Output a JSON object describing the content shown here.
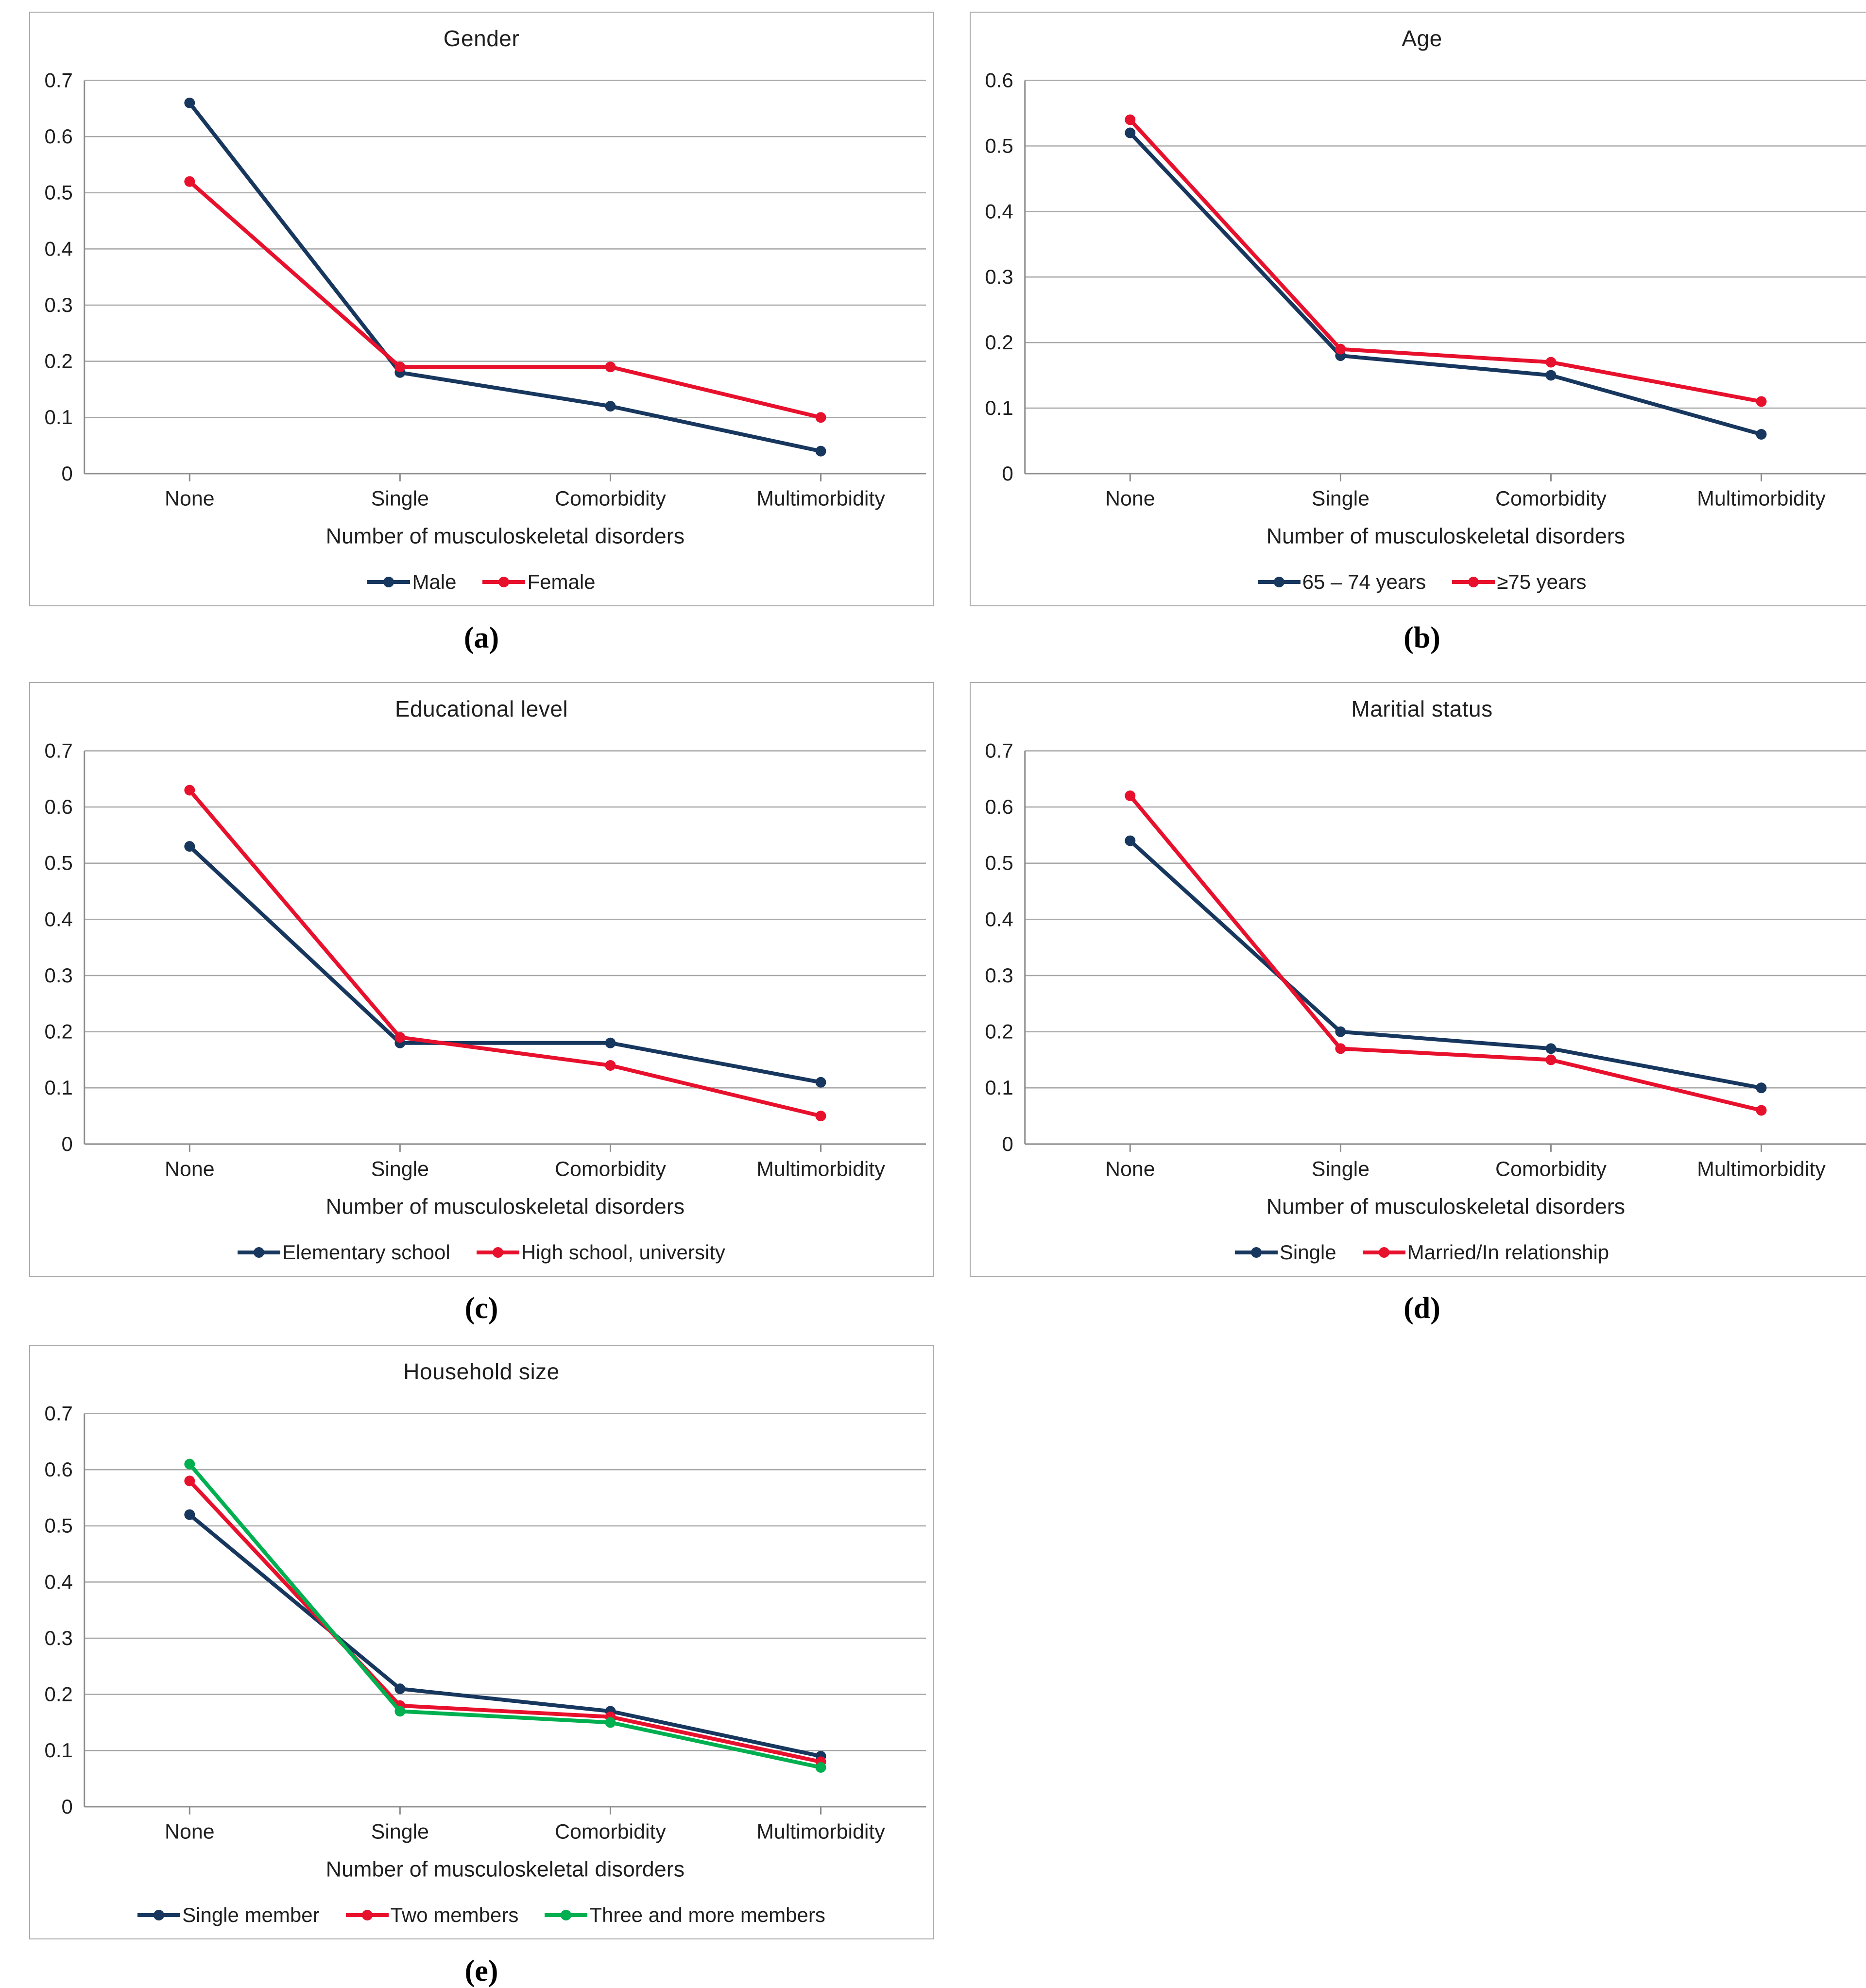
{
  "figure": {
    "xlabel": "Number of musculoskeletal disorders",
    "categories": [
      "None",
      "Single",
      "Comorbidity",
      "Multimorbidity"
    ]
  },
  "colors": {
    "navy": "#17375E",
    "red": "#E8112D",
    "green": "#00AF50",
    "gridline": "#a8a8a8",
    "axis": "#8c8c8c",
    "panel_border": "#a9a9a9",
    "text": "#1f1f1f"
  },
  "chart_data": [
    {
      "type": "line",
      "caption": "(a)",
      "title": "Gender",
      "xlabel": "Number of musculoskeletal disorders",
      "categories": [
        "None",
        "Single",
        "Comorbidity",
        "Multimorbidity"
      ],
      "ylim": [
        0,
        0.7
      ],
      "ytick_labels": [
        "0",
        "0.1",
        "0.2",
        "0.3",
        "0.4",
        "0.5",
        "0.6",
        "0.7"
      ],
      "grid": true,
      "legend_position": "bottom",
      "series": [
        {
          "name": "Male",
          "color_key": "navy",
          "values": [
            0.66,
            0.18,
            0.12,
            0.04
          ]
        },
        {
          "name": "Female",
          "color_key": "red",
          "values": [
            0.52,
            0.19,
            0.19,
            0.1
          ]
        }
      ]
    },
    {
      "type": "line",
      "caption": "(b)",
      "title": "Age",
      "xlabel": "Number of musculoskeletal disorders",
      "categories": [
        "None",
        "Single",
        "Comorbidity",
        "Multimorbidity"
      ],
      "ylim": [
        0,
        0.6
      ],
      "ytick_labels": [
        "0",
        "0.1",
        "0.2",
        "0.3",
        "0.4",
        "0.5",
        "0.6"
      ],
      "grid": true,
      "legend_position": "bottom",
      "series": [
        {
          "name": "65 – 74 years",
          "color_key": "navy",
          "values": [
            0.52,
            0.18,
            0.15,
            0.06
          ]
        },
        {
          "name": "≥75 years",
          "color_key": "red",
          "values": [
            0.54,
            0.19,
            0.17,
            0.11
          ]
        }
      ]
    },
    {
      "type": "line",
      "caption": "(c)",
      "title": "Educational level",
      "xlabel": "Number of musculoskeletal disorders",
      "categories": [
        "None",
        "Single",
        "Comorbidity",
        "Multimorbidity"
      ],
      "ylim": [
        0,
        0.7
      ],
      "ytick_labels": [
        "0",
        "0.1",
        "0.2",
        "0.3",
        "0.4",
        "0.5",
        "0.6",
        "0.7"
      ],
      "grid": true,
      "legend_position": "bottom",
      "series": [
        {
          "name": "Elementary school",
          "color_key": "navy",
          "values": [
            0.53,
            0.18,
            0.18,
            0.11
          ]
        },
        {
          "name": "High school, university",
          "color_key": "red",
          "values": [
            0.63,
            0.19,
            0.14,
            0.05
          ]
        }
      ]
    },
    {
      "type": "line",
      "caption": "(d)",
      "title": "Maritial status",
      "xlabel": "Number of musculoskeletal disorders",
      "categories": [
        "None",
        "Single",
        "Comorbidity",
        "Multimorbidity"
      ],
      "ylim": [
        0,
        0.7
      ],
      "ytick_labels": [
        "0",
        "0.1",
        "0.2",
        "0.3",
        "0.4",
        "0.5",
        "0.6",
        "0.7"
      ],
      "grid": true,
      "legend_position": "bottom",
      "series": [
        {
          "name": "Single",
          "color_key": "navy",
          "values": [
            0.54,
            0.2,
            0.17,
            0.1
          ]
        },
        {
          "name": "Married/In relationship",
          "color_key": "red",
          "values": [
            0.62,
            0.17,
            0.15,
            0.06
          ]
        }
      ]
    },
    {
      "type": "line",
      "caption": "(e)",
      "title": "Household size",
      "xlabel": "Number of musculoskeletal disorders",
      "categories": [
        "None",
        "Single",
        "Comorbidity",
        "Multimorbidity"
      ],
      "ylim": [
        0,
        0.7
      ],
      "ytick_labels": [
        "0",
        "0.1",
        "0.2",
        "0.3",
        "0.4",
        "0.5",
        "0.6",
        "0.7"
      ],
      "grid": true,
      "legend_position": "bottom",
      "series": [
        {
          "name": "Single member",
          "color_key": "navy",
          "values": [
            0.52,
            0.21,
            0.17,
            0.09
          ]
        },
        {
          "name": "Two members",
          "color_key": "red",
          "values": [
            0.58,
            0.18,
            0.16,
            0.08
          ]
        },
        {
          "name": "Three and more members",
          "color_key": "green",
          "values": [
            0.61,
            0.17,
            0.15,
            0.07
          ]
        }
      ]
    }
  ]
}
